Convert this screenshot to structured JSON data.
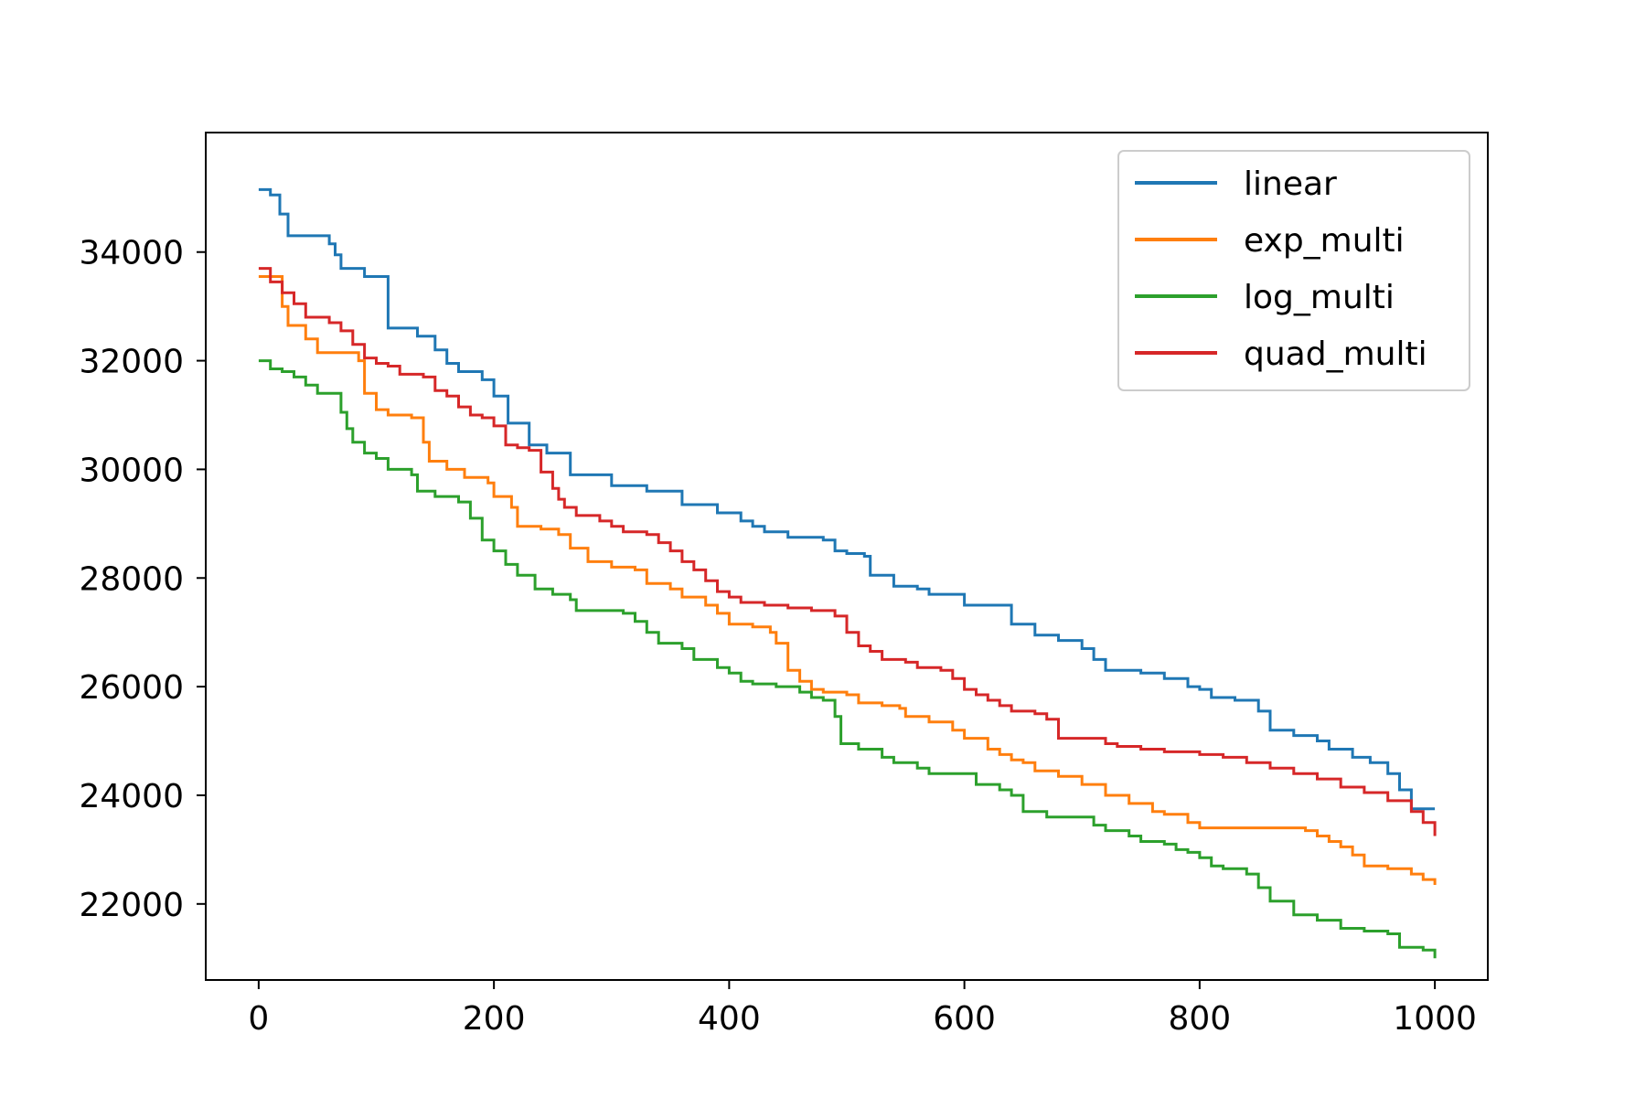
{
  "chart_data": {
    "type": "line",
    "title": "",
    "xlabel": "",
    "ylabel": "",
    "xlim": [
      -45,
      1045
    ],
    "ylim": [
      20600,
      36200
    ],
    "xticks": [
      0,
      200,
      400,
      600,
      800,
      1000
    ],
    "yticks": [
      22000,
      24000,
      26000,
      28000,
      30000,
      32000,
      34000
    ],
    "grid": false,
    "legend": {
      "position": "top-right"
    },
    "series": [
      {
        "name": "linear",
        "color": "#1f77b4",
        "points": [
          [
            0,
            35150
          ],
          [
            10,
            35050
          ],
          [
            18,
            34700
          ],
          [
            25,
            34300
          ],
          [
            60,
            34150
          ],
          [
            65,
            33950
          ],
          [
            70,
            33700
          ],
          [
            90,
            33550
          ],
          [
            110,
            32600
          ],
          [
            135,
            32450
          ],
          [
            150,
            32200
          ],
          [
            160,
            31950
          ],
          [
            170,
            31800
          ],
          [
            190,
            31650
          ],
          [
            200,
            31350
          ],
          [
            212,
            30850
          ],
          [
            230,
            30450
          ],
          [
            245,
            30300
          ],
          [
            265,
            29900
          ],
          [
            280,
            29900
          ],
          [
            300,
            29700
          ],
          [
            330,
            29600
          ],
          [
            355,
            29600
          ],
          [
            360,
            29350
          ],
          [
            380,
            29350
          ],
          [
            390,
            29200
          ],
          [
            410,
            29050
          ],
          [
            420,
            28950
          ],
          [
            430,
            28850
          ],
          [
            450,
            28750
          ],
          [
            480,
            28700
          ],
          [
            490,
            28500
          ],
          [
            500,
            28450
          ],
          [
            515,
            28400
          ],
          [
            520,
            28050
          ],
          [
            540,
            27850
          ],
          [
            560,
            27800
          ],
          [
            570,
            27700
          ],
          [
            600,
            27500
          ],
          [
            635,
            27500
          ],
          [
            640,
            27150
          ],
          [
            660,
            26950
          ],
          [
            680,
            26850
          ],
          [
            700,
            26700
          ],
          [
            710,
            26500
          ],
          [
            720,
            26300
          ],
          [
            750,
            26250
          ],
          [
            770,
            26150
          ],
          [
            790,
            26000
          ],
          [
            800,
            25950
          ],
          [
            810,
            25800
          ],
          [
            830,
            25750
          ],
          [
            850,
            25550
          ],
          [
            860,
            25200
          ],
          [
            880,
            25100
          ],
          [
            900,
            25000
          ],
          [
            910,
            24850
          ],
          [
            930,
            24700
          ],
          [
            945,
            24600
          ],
          [
            960,
            24400
          ],
          [
            970,
            24100
          ],
          [
            980,
            23750
          ],
          [
            1000,
            23750
          ]
        ]
      },
      {
        "name": "exp_multi",
        "color": "#ff7f0e",
        "points": [
          [
            0,
            33550
          ],
          [
            15,
            33550
          ],
          [
            20,
            33000
          ],
          [
            25,
            32650
          ],
          [
            40,
            32400
          ],
          [
            50,
            32150
          ],
          [
            65,
            32150
          ],
          [
            85,
            32000
          ],
          [
            90,
            31400
          ],
          [
            100,
            31100
          ],
          [
            110,
            31000
          ],
          [
            130,
            30950
          ],
          [
            140,
            30500
          ],
          [
            145,
            30150
          ],
          [
            160,
            30000
          ],
          [
            175,
            29850
          ],
          [
            195,
            29750
          ],
          [
            200,
            29500
          ],
          [
            215,
            29300
          ],
          [
            220,
            28950
          ],
          [
            240,
            28900
          ],
          [
            255,
            28800
          ],
          [
            265,
            28550
          ],
          [
            280,
            28300
          ],
          [
            300,
            28200
          ],
          [
            320,
            28150
          ],
          [
            330,
            27900
          ],
          [
            350,
            27800
          ],
          [
            360,
            27650
          ],
          [
            380,
            27500
          ],
          [
            390,
            27350
          ],
          [
            400,
            27150
          ],
          [
            420,
            27100
          ],
          [
            435,
            27000
          ],
          [
            440,
            26800
          ],
          [
            450,
            26300
          ],
          [
            460,
            26100
          ],
          [
            470,
            25950
          ],
          [
            480,
            25900
          ],
          [
            500,
            25850
          ],
          [
            510,
            25700
          ],
          [
            530,
            25650
          ],
          [
            545,
            25600
          ],
          [
            550,
            25450
          ],
          [
            570,
            25350
          ],
          [
            590,
            25200
          ],
          [
            600,
            25050
          ],
          [
            620,
            24850
          ],
          [
            630,
            24750
          ],
          [
            640,
            24650
          ],
          [
            650,
            24600
          ],
          [
            660,
            24450
          ],
          [
            680,
            24350
          ],
          [
            700,
            24200
          ],
          [
            720,
            24000
          ],
          [
            740,
            23850
          ],
          [
            760,
            23700
          ],
          [
            770,
            23650
          ],
          [
            790,
            23500
          ],
          [
            800,
            23400
          ],
          [
            840,
            23400
          ],
          [
            890,
            23350
          ],
          [
            900,
            23250
          ],
          [
            910,
            23150
          ],
          [
            920,
            23050
          ],
          [
            930,
            22900
          ],
          [
            940,
            22700
          ],
          [
            960,
            22650
          ],
          [
            980,
            22550
          ],
          [
            990,
            22450
          ],
          [
            1000,
            22350
          ]
        ]
      },
      {
        "name": "log_multi",
        "color": "#2ca02c",
        "points": [
          [
            0,
            32000
          ],
          [
            10,
            31850
          ],
          [
            20,
            31800
          ],
          [
            30,
            31700
          ],
          [
            40,
            31550
          ],
          [
            50,
            31400
          ],
          [
            65,
            31400
          ],
          [
            70,
            31050
          ],
          [
            75,
            30750
          ],
          [
            80,
            30500
          ],
          [
            90,
            30300
          ],
          [
            100,
            30200
          ],
          [
            110,
            30000
          ],
          [
            130,
            29900
          ],
          [
            135,
            29600
          ],
          [
            150,
            29500
          ],
          [
            170,
            29400
          ],
          [
            180,
            29100
          ],
          [
            190,
            28700
          ],
          [
            200,
            28500
          ],
          [
            210,
            28250
          ],
          [
            220,
            28050
          ],
          [
            235,
            27800
          ],
          [
            250,
            27700
          ],
          [
            265,
            27600
          ],
          [
            270,
            27400
          ],
          [
            310,
            27350
          ],
          [
            320,
            27200
          ],
          [
            330,
            27000
          ],
          [
            340,
            26800
          ],
          [
            360,
            26700
          ],
          [
            370,
            26500
          ],
          [
            390,
            26350
          ],
          [
            400,
            26250
          ],
          [
            410,
            26100
          ],
          [
            420,
            26050
          ],
          [
            440,
            26000
          ],
          [
            460,
            25900
          ],
          [
            470,
            25800
          ],
          [
            480,
            25750
          ],
          [
            490,
            25450
          ],
          [
            495,
            24950
          ],
          [
            510,
            24850
          ],
          [
            530,
            24700
          ],
          [
            540,
            24600
          ],
          [
            560,
            24500
          ],
          [
            570,
            24400
          ],
          [
            600,
            24400
          ],
          [
            610,
            24200
          ],
          [
            630,
            24100
          ],
          [
            640,
            24000
          ],
          [
            650,
            23700
          ],
          [
            670,
            23600
          ],
          [
            700,
            23600
          ],
          [
            710,
            23450
          ],
          [
            720,
            23350
          ],
          [
            740,
            23250
          ],
          [
            750,
            23150
          ],
          [
            770,
            23100
          ],
          [
            780,
            23000
          ],
          [
            790,
            22950
          ],
          [
            800,
            22850
          ],
          [
            810,
            22700
          ],
          [
            820,
            22650
          ],
          [
            840,
            22550
          ],
          [
            850,
            22300
          ],
          [
            860,
            22050
          ],
          [
            880,
            21800
          ],
          [
            900,
            21700
          ],
          [
            910,
            21700
          ],
          [
            920,
            21550
          ],
          [
            940,
            21500
          ],
          [
            960,
            21450
          ],
          [
            970,
            21200
          ],
          [
            990,
            21150
          ],
          [
            1000,
            21000
          ]
        ]
      },
      {
        "name": "quad_multi",
        "color": "#d62728",
        "points": [
          [
            0,
            33700
          ],
          [
            10,
            33450
          ],
          [
            20,
            33250
          ],
          [
            30,
            33050
          ],
          [
            40,
            32800
          ],
          [
            60,
            32700
          ],
          [
            70,
            32550
          ],
          [
            80,
            32300
          ],
          [
            90,
            32050
          ],
          [
            100,
            31950
          ],
          [
            110,
            31900
          ],
          [
            120,
            31750
          ],
          [
            140,
            31700
          ],
          [
            150,
            31450
          ],
          [
            160,
            31350
          ],
          [
            170,
            31150
          ],
          [
            180,
            31000
          ],
          [
            190,
            30950
          ],
          [
            200,
            30800
          ],
          [
            210,
            30450
          ],
          [
            220,
            30400
          ],
          [
            230,
            30350
          ],
          [
            240,
            29950
          ],
          [
            250,
            29650
          ],
          [
            255,
            29450
          ],
          [
            260,
            29300
          ],
          [
            270,
            29150
          ],
          [
            290,
            29050
          ],
          [
            300,
            28950
          ],
          [
            310,
            28850
          ],
          [
            330,
            28800
          ],
          [
            340,
            28650
          ],
          [
            350,
            28500
          ],
          [
            360,
            28300
          ],
          [
            370,
            28150
          ],
          [
            380,
            27950
          ],
          [
            390,
            27750
          ],
          [
            400,
            27650
          ],
          [
            410,
            27550
          ],
          [
            430,
            27500
          ],
          [
            450,
            27450
          ],
          [
            470,
            27400
          ],
          [
            490,
            27300
          ],
          [
            500,
            27000
          ],
          [
            510,
            26750
          ],
          [
            520,
            26650
          ],
          [
            530,
            26500
          ],
          [
            550,
            26450
          ],
          [
            560,
            26350
          ],
          [
            580,
            26300
          ],
          [
            590,
            26150
          ],
          [
            600,
            25950
          ],
          [
            610,
            25850
          ],
          [
            620,
            25750
          ],
          [
            630,
            25650
          ],
          [
            640,
            25550
          ],
          [
            660,
            25500
          ],
          [
            670,
            25400
          ],
          [
            680,
            25050
          ],
          [
            700,
            25050
          ],
          [
            720,
            24950
          ],
          [
            730,
            24900
          ],
          [
            750,
            24850
          ],
          [
            770,
            24800
          ],
          [
            800,
            24750
          ],
          [
            820,
            24700
          ],
          [
            840,
            24600
          ],
          [
            860,
            24500
          ],
          [
            880,
            24400
          ],
          [
            900,
            24300
          ],
          [
            920,
            24150
          ],
          [
            940,
            24050
          ],
          [
            960,
            23900
          ],
          [
            980,
            23700
          ],
          [
            990,
            23500
          ],
          [
            1000,
            23250
          ]
        ]
      }
    ]
  }
}
